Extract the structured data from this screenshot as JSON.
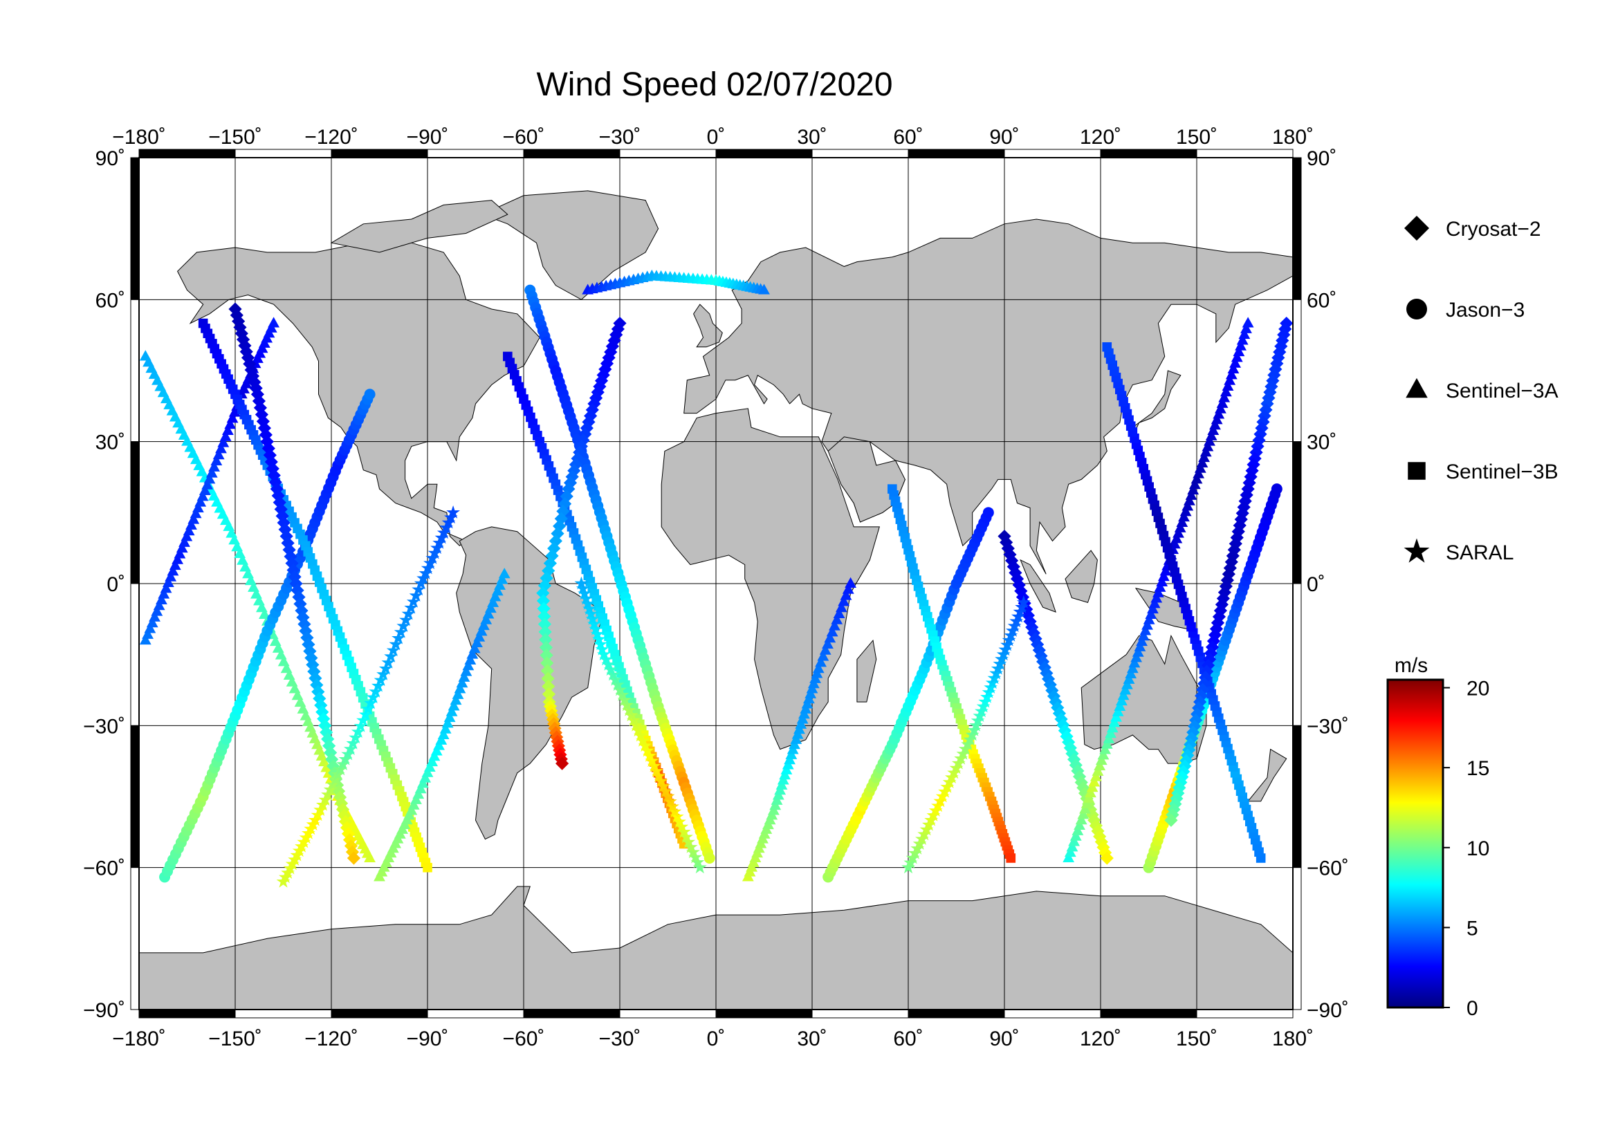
{
  "title": "Wind Speed 02/07/2020",
  "map": {
    "lon_ticks": [
      -180,
      -150,
      -120,
      -90,
      -60,
      -30,
      0,
      30,
      60,
      90,
      120,
      150,
      180
    ],
    "lat_ticks": [
      90,
      60,
      30,
      0,
      -30,
      -60,
      -90
    ],
    "lon_labels": [
      "−180˚",
      "−150˚",
      "−120˚",
      "−90˚",
      "−60˚",
      "−30˚",
      "0˚",
      "30˚",
      "60˚",
      "90˚",
      "120˚",
      "150˚",
      "180˚"
    ],
    "lat_labels": [
      "90˚",
      "60˚",
      "30˚",
      "0˚",
      "−30˚",
      "−60˚",
      "−90˚"
    ],
    "land_color": "#bebebe",
    "frame_color": "#000000"
  },
  "legend": {
    "items": [
      {
        "label": "Cryosat−2",
        "symbol": "diamond"
      },
      {
        "label": "Jason−3",
        "symbol": "circle"
      },
      {
        "label": "Sentinel−3A",
        "symbol": "triangle"
      },
      {
        "label": "Sentinel−3B",
        "symbol": "square"
      },
      {
        "label": "SARAL",
        "symbol": "star"
      }
    ]
  },
  "colorbar": {
    "unit": "m/s",
    "ticks": [
      "20",
      "15",
      "10",
      "5",
      "0"
    ],
    "range": [
      0,
      20.5
    ],
    "stops": [
      "#00007f",
      "#0000ff",
      "#007fff",
      "#00ffff",
      "#7fff7f",
      "#ffff00",
      "#ff7f00",
      "#ff0000",
      "#7f0000"
    ]
  },
  "chart_data": {
    "type": "scatter",
    "title": "Wind Speed 02/07/2020",
    "xlim": [
      -180,
      180
    ],
    "ylim": [
      -90,
      90
    ],
    "value_unit": "m/s",
    "colorbar_range": [
      0,
      20.5
    ],
    "grid": true,
    "legend_placement": "right",
    "series": [
      {
        "name": "Cryosat−2",
        "symbol": "diamond"
      },
      {
        "name": "Jason−3",
        "symbol": "circle"
      },
      {
        "name": "Sentinel−3A",
        "symbol": "triangle"
      },
      {
        "name": "Sentinel−3B",
        "symbol": "square"
      },
      {
        "name": "SARAL",
        "symbol": "star"
      }
    ],
    "tracks": [
      {
        "satellite": "Sentinel−3A",
        "points": [
          [
            -178,
            48,
            6
          ],
          [
            -165,
            30,
            7
          ],
          [
            -152,
            12,
            8
          ],
          [
            -140,
            -8,
            9
          ],
          [
            -128,
            -28,
            10
          ],
          [
            -118,
            -45,
            13
          ],
          [
            -108,
            -58,
            12
          ]
        ]
      },
      {
        "satellite": "Sentinel−3A",
        "points": [
          [
            -178,
            -12,
            5
          ],
          [
            -168,
            5,
            3
          ],
          [
            -158,
            22,
            4
          ],
          [
            -148,
            40,
            2
          ],
          [
            -138,
            55,
            3
          ]
        ]
      },
      {
        "satellite": "Jason−3",
        "points": [
          [
            -172,
            -62,
            9
          ],
          [
            -160,
            -45,
            11
          ],
          [
            -150,
            -28,
            8
          ],
          [
            -140,
            -10,
            6
          ],
          [
            -128,
            8,
            4
          ],
          [
            -118,
            25,
            3
          ],
          [
            -108,
            40,
            5
          ]
        ]
      },
      {
        "satellite": "Sentinel−3B",
        "points": [
          [
            -160,
            55,
            2
          ],
          [
            -150,
            40,
            3
          ],
          [
            -140,
            25,
            5
          ],
          [
            -128,
            8,
            6
          ],
          [
            -118,
            -10,
            7
          ],
          [
            -108,
            -28,
            9
          ],
          [
            -98,
            -45,
            12
          ],
          [
            -90,
            -60,
            13
          ]
        ]
      },
      {
        "satellite": "Cryosat−2",
        "points": [
          [
            -150,
            58,
            1
          ],
          [
            -143,
            40,
            2
          ],
          [
            -137,
            20,
            3
          ],
          [
            -131,
            0,
            4
          ],
          [
            -125,
            -20,
            6
          ],
          [
            -119,
            -40,
            10
          ],
          [
            -113,
            -58,
            14
          ]
        ]
      },
      {
        "satellite": "SARAL",
        "points": [
          [
            -135,
            -63,
            12
          ],
          [
            -125,
            -50,
            13
          ],
          [
            -114,
            -35,
            9
          ],
          [
            -103,
            -18,
            6
          ],
          [
            -92,
            0,
            5
          ],
          [
            -82,
            15,
            4
          ]
        ]
      },
      {
        "satellite": "Sentinel−3A",
        "points": [
          [
            -105,
            -62,
            11
          ],
          [
            -95,
            -48,
            10
          ],
          [
            -85,
            -32,
            7
          ],
          [
            -76,
            -15,
            5
          ],
          [
            -66,
            2,
            6
          ]
        ]
      },
      {
        "satellite": "Jason−3",
        "points": [
          [
            -58,
            62,
            5
          ],
          [
            -50,
            45,
            3
          ],
          [
            -42,
            28,
            4
          ],
          [
            -34,
            10,
            6
          ],
          [
            -26,
            -8,
            8
          ],
          [
            -18,
            -26,
            11
          ],
          [
            -10,
            -42,
            15
          ],
          [
            -2,
            -58,
            12
          ]
        ]
      },
      {
        "satellite": "Sentinel−3B",
        "points": [
          [
            -65,
            48,
            2
          ],
          [
            -55,
            30,
            3
          ],
          [
            -45,
            12,
            5
          ],
          [
            -36,
            -6,
            7
          ],
          [
            -27,
            -24,
            9
          ],
          [
            -18,
            -40,
            16
          ],
          [
            -10,
            -55,
            14
          ]
        ]
      },
      {
        "satellite": "Cryosat−2",
        "points": [
          [
            -30,
            55,
            2
          ],
          [
            -38,
            38,
            3
          ],
          [
            -46,
            20,
            5
          ],
          [
            -54,
            -2,
            7
          ],
          [
            -52,
            -25,
            12
          ],
          [
            -48,
            -38,
            19
          ]
        ]
      },
      {
        "satellite": "SARAL",
        "points": [
          [
            -5,
            -60,
            10
          ],
          [
            -15,
            -45,
            14
          ],
          [
            -25,
            -30,
            12
          ],
          [
            -35,
            -15,
            8
          ],
          [
            -42,
            0,
            6
          ]
        ]
      },
      {
        "satellite": "Sentinel−3A",
        "points": [
          [
            -40,
            62,
            3
          ],
          [
            -20,
            65,
            6
          ],
          [
            0,
            64,
            8
          ],
          [
            15,
            62,
            5
          ]
        ]
      },
      {
        "satellite": "Sentinel−3A",
        "points": [
          [
            10,
            -62,
            12
          ],
          [
            18,
            -48,
            10
          ],
          [
            25,
            -33,
            6
          ],
          [
            32,
            -18,
            5
          ],
          [
            42,
            0,
            3
          ]
        ]
      },
      {
        "satellite": "Jason−3",
        "points": [
          [
            35,
            -62,
            11
          ],
          [
            45,
            -48,
            13
          ],
          [
            55,
            -34,
            9
          ],
          [
            65,
            -18,
            7
          ],
          [
            75,
            0,
            4
          ],
          [
            85,
            15,
            3
          ]
        ]
      },
      {
        "satellite": "Sentinel−3B",
        "points": [
          [
            55,
            20,
            5
          ],
          [
            62,
            2,
            6
          ],
          [
            70,
            -16,
            8
          ],
          [
            78,
            -32,
            12
          ],
          [
            86,
            -46,
            15
          ],
          [
            92,
            -58,
            17
          ]
        ]
      },
      {
        "satellite": "Cryosat−2",
        "points": [
          [
            90,
            10,
            1
          ],
          [
            98,
            -8,
            3
          ],
          [
            106,
            -25,
            6
          ],
          [
            114,
            -42,
            10
          ],
          [
            122,
            -58,
            13
          ]
        ]
      },
      {
        "satellite": "SARAL",
        "points": [
          [
            60,
            -60,
            10
          ],
          [
            70,
            -46,
            13
          ],
          [
            80,
            -32,
            10
          ],
          [
            88,
            -18,
            6
          ],
          [
            96,
            -4,
            4
          ]
        ]
      },
      {
        "satellite": "Sentinel−3A",
        "points": [
          [
            110,
            -58,
            8
          ],
          [
            118,
            -42,
            12
          ],
          [
            126,
            -26,
            7
          ],
          [
            134,
            -10,
            4
          ],
          [
            142,
            6,
            2
          ],
          [
            150,
            22,
            1
          ],
          [
            158,
            38,
            2
          ],
          [
            166,
            55,
            3
          ]
        ]
      },
      {
        "satellite": "Jason−3",
        "points": [
          [
            135,
            -60,
            11
          ],
          [
            143,
            -44,
            14
          ],
          [
            151,
            -28,
            8
          ],
          [
            159,
            -12,
            5
          ],
          [
            167,
            4,
            3
          ],
          [
            175,
            20,
            2
          ]
        ]
      },
      {
        "satellite": "Sentinel−3B",
        "points": [
          [
            170,
            -58,
            5
          ],
          [
            162,
            -40,
            6
          ],
          [
            154,
            -22,
            4
          ],
          [
            146,
            -4,
            2
          ],
          [
            138,
            14,
            1
          ],
          [
            130,
            32,
            3
          ],
          [
            122,
            50,
            4
          ]
        ]
      },
      {
        "satellite": "Cryosat−2",
        "points": [
          [
            178,
            55,
            3
          ],
          [
            172,
            38,
            4
          ],
          [
            166,
            20,
            2
          ],
          [
            160,
            2,
            1
          ],
          [
            154,
            -16,
            3
          ],
          [
            148,
            -34,
            6
          ],
          [
            142,
            -50,
            10
          ]
        ]
      }
    ]
  }
}
